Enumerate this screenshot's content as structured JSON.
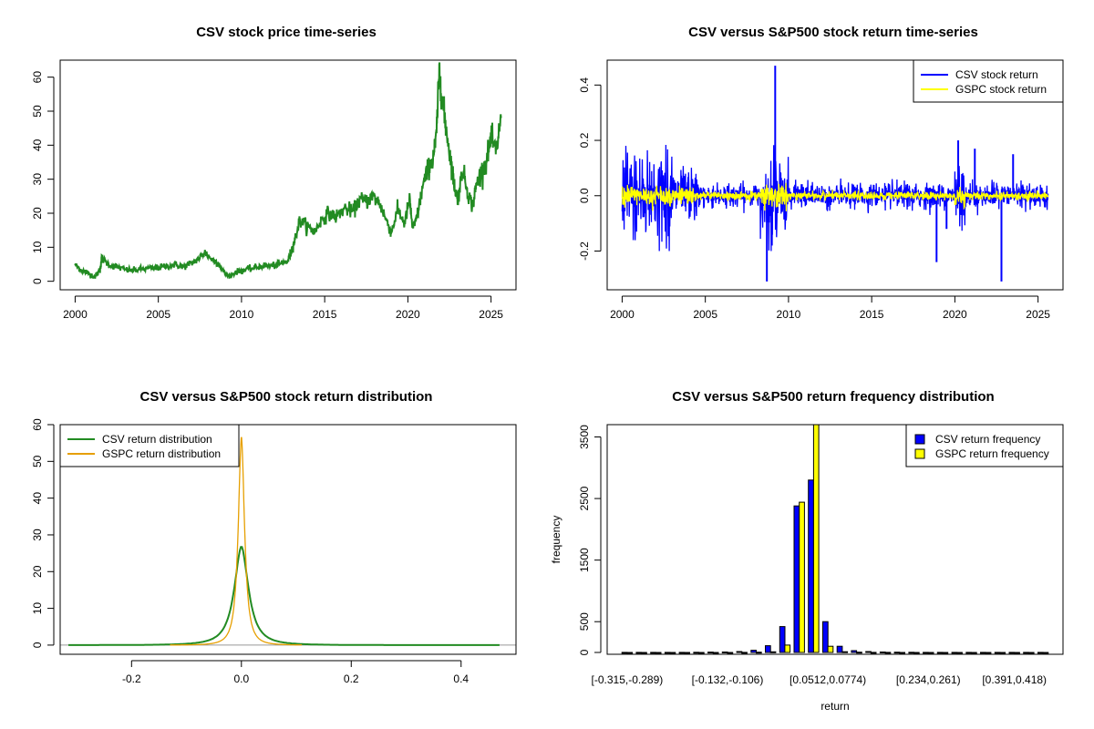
{
  "chart_data": [
    {
      "type": "line",
      "title": "CSV stock price time-series",
      "xlabel": "",
      "ylabel": "",
      "xlim": [
        1999.1,
        2026.5
      ],
      "ylim": [
        -2.5,
        65
      ],
      "x_ticks": [
        2000,
        2005,
        2010,
        2015,
        2020,
        2025
      ],
      "x_tick_labels": [
        "2000",
        "2005",
        "2010",
        "2015",
        "2020",
        "2025"
      ],
      "y_ticks": [
        0,
        10,
        20,
        30,
        40,
        50,
        60
      ],
      "y_tick_labels": [
        "0",
        "10",
        "20",
        "30",
        "40",
        "50",
        "60"
      ],
      "series": [
        {
          "name": "CSV",
          "color": "#228b22",
          "x": [
            2000.0,
            2000.4,
            2000.8,
            2001.2,
            2001.5,
            2001.6,
            2002.0,
            2002.5,
            2003.0,
            2003.5,
            2004.0,
            2004.5,
            2005.0,
            2005.5,
            2006.0,
            2006.5,
            2007.0,
            2007.5,
            2007.8,
            2008.2,
            2008.6,
            2009.0,
            2009.3,
            2009.7,
            2010.2,
            2010.8,
            2011.3,
            2011.8,
            2012.3,
            2012.8,
            2013.0,
            2013.2,
            2013.5,
            2014.0,
            2014.4,
            2014.8,
            2015.2,
            2015.7,
            2016.2,
            2016.7,
            2017.1,
            2017.5,
            2017.9,
            2018.3,
            2018.7,
            2019.0,
            2019.4,
            2019.8,
            2020.1,
            2020.3,
            2020.6,
            2020.9,
            2021.2,
            2021.5,
            2021.7,
            2021.9,
            2022.1,
            2022.3,
            2022.6,
            2022.8,
            2023.0,
            2023.3,
            2023.6,
            2023.9,
            2024.1,
            2024.4,
            2024.7,
            2025.0,
            2025.3,
            2025.6
          ],
          "y": [
            4.8,
            3.2,
            2.3,
            1.3,
            3.5,
            6.8,
            5.0,
            4.2,
            3.4,
            3.2,
            3.6,
            3.8,
            4.0,
            4.4,
            4.9,
            4.3,
            5.2,
            7.0,
            8.5,
            6.5,
            5.3,
            2.2,
            1.5,
            2.8,
            3.3,
            4.0,
            4.6,
            4.5,
            5.0,
            6.0,
            9.0,
            12.0,
            18.0,
            16.0,
            14.5,
            18.0,
            20.0,
            19.0,
            21.5,
            20.5,
            24.0,
            23.5,
            25.0,
            23.0,
            18.0,
            14.5,
            21.0,
            17.0,
            24.0,
            15.0,
            20.0,
            28.0,
            33.0,
            36.0,
            42.0,
            62.0,
            52.0,
            45.0,
            35.0,
            28.0,
            24.0,
            33.0,
            26.0,
            22.0,
            28.0,
            32.0,
            35.0,
            42.0,
            38.0,
            48.0
          ]
        }
      ]
    },
    {
      "type": "line",
      "title": "CSV versus S&P500 stock return time-series",
      "xlabel": "",
      "ylabel": "",
      "xlim": [
        1999.1,
        2026.5
      ],
      "ylim": [
        -0.34,
        0.49
      ],
      "x_ticks": [
        2000,
        2005,
        2010,
        2015,
        2020,
        2025
      ],
      "x_tick_labels": [
        "2000",
        "2005",
        "2010",
        "2015",
        "2020",
        "2025"
      ],
      "y_ticks": [
        -0.2,
        0.0,
        0.2,
        0.4
      ],
      "y_tick_labels": [
        "-0.2",
        "0.0",
        "0.2",
        "0.4"
      ],
      "legend": {
        "position": "top-right",
        "entries": [
          {
            "label": "CSV stock return",
            "color": "#0000ff"
          },
          {
            "label": "GSPC stock return",
            "color": "#ffff00"
          }
        ]
      },
      "series": [
        {
          "name": "CSV stock return",
          "color": "#0000ff",
          "generated": true,
          "noise_sd": 0.035
        },
        {
          "name": "GSPC stock return",
          "color": "#ffff00",
          "generated": true,
          "noise_sd": 0.012
        }
      ],
      "spikes": [
        {
          "x": 2008.7,
          "y": -0.31
        },
        {
          "x": 2009.2,
          "y": 0.47
        },
        {
          "x": 2009.0,
          "y": -0.18
        },
        {
          "x": 2018.9,
          "y": -0.24
        },
        {
          "x": 2020.2,
          "y": 0.2
        },
        {
          "x": 2022.8,
          "y": -0.31
        },
        {
          "x": 2023.5,
          "y": 0.15
        },
        {
          "x": 2019.5,
          "y": -0.12
        },
        {
          "x": 2021.2,
          "y": 0.17
        }
      ]
    },
    {
      "type": "line",
      "title": "CSV versus S&P500 stock return distribution",
      "xlabel": "",
      "ylabel": "",
      "xlim": [
        -0.33,
        0.5
      ],
      "ylim": [
        -2.5,
        60
      ],
      "x_ticks": [
        -0.2,
        0.0,
        0.2,
        0.4
      ],
      "x_tick_labels": [
        "-0.2",
        "0.0",
        "0.2",
        "0.4"
      ],
      "y_ticks": [
        0,
        10,
        20,
        30,
        40,
        50,
        60
      ],
      "y_tick_labels": [
        "0",
        "10",
        "20",
        "30",
        "40",
        "50",
        "60"
      ],
      "legend": {
        "position": "top-left",
        "entries": [
          {
            "label": "CSV return distribution",
            "color": "#228b22"
          },
          {
            "label": "GSPC return distribution",
            "color": "#e69f00"
          }
        ]
      },
      "series": [
        {
          "name": "CSV return distribution",
          "color": "#228b22",
          "peak": 27,
          "x_range": [
            -0.315,
            0.47
          ]
        },
        {
          "name": "GSPC return distribution",
          "color": "#e69f00",
          "peak": 57,
          "x_range": [
            -0.13,
            0.11
          ]
        }
      ]
    },
    {
      "type": "bar",
      "title": "CSV versus S&P500 return frequency distribution",
      "xlabel": "return",
      "ylabel": "frequency",
      "ylim": [
        0,
        3700
      ],
      "y_ticks": [
        0,
        500,
        1500,
        2500,
        3500
      ],
      "y_tick_labels": [
        "0",
        "500",
        "1500",
        "2500",
        "3500"
      ],
      "x_tick_labels": [
        {
          "label": "[-0.315,-0.289)",
          "index": 0
        },
        {
          "label": "[-0.132,-0.106)",
          "index": 7
        },
        {
          "label": "[0.0512,0.0774)",
          "index": 14
        },
        {
          "label": "[0.234,0.261)",
          "index": 21
        },
        {
          "label": "[0.391,0.418)",
          "index": 27
        }
      ],
      "legend": {
        "position": "top-right",
        "entries": [
          {
            "label": "CSV return frequency",
            "color": "#0000ff"
          },
          {
            "label": "GSPC return frequency",
            "color": "#ffff00"
          }
        ]
      },
      "bin_count": 30,
      "series": [
        {
          "name": "CSV return frequency",
          "color": "#0000ff",
          "values": [
            1,
            1,
            1,
            2,
            2,
            3,
            6,
            8,
            15,
            35,
            110,
            420,
            2380,
            2800,
            500,
            100,
            30,
            15,
            8,
            5,
            3,
            2,
            2,
            1,
            1,
            1,
            1,
            1,
            1,
            1
          ]
        },
        {
          "name": "GSPC return frequency",
          "color": "#ffff00",
          "values": [
            0,
            0,
            0,
            0,
            0,
            0,
            0,
            0,
            2,
            5,
            10,
            120,
            2440,
            3700,
            100,
            12,
            4,
            2,
            1,
            0,
            0,
            0,
            0,
            0,
            0,
            0,
            0,
            0,
            0,
            0
          ]
        }
      ]
    }
  ]
}
